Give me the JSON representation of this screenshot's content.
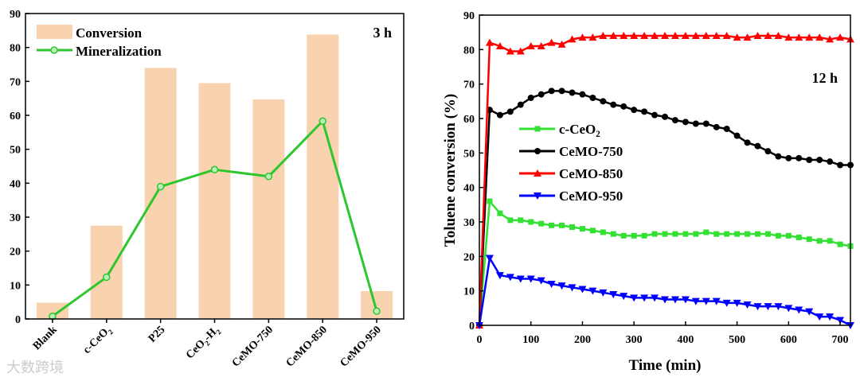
{
  "chart_data": [
    {
      "type": "bar+line",
      "annotation": "3 h",
      "categories": [
        "Blank",
        "c-CeO2",
        "P25",
        "CeO2-H2",
        "CeMO-750",
        "CeMO-850",
        "CeMO-950"
      ],
      "category_labels": [
        {
          "base": "Blank",
          "sub": ""
        },
        {
          "base": "c-CeO",
          "sub": "2"
        },
        {
          "base": "P25",
          "sub": ""
        },
        {
          "base": "CeO",
          "sub": "2",
          "rest": "-H",
          "sub2": "2"
        },
        {
          "base": "CeMO-750",
          "sub": ""
        },
        {
          "base": "CeMO-850",
          "sub": ""
        },
        {
          "base": "CeMO-950",
          "sub": ""
        }
      ],
      "series": [
        {
          "name": "Conversion",
          "kind": "bar",
          "color": "#f9d3b0",
          "values": [
            4.8,
            27.5,
            74,
            69.5,
            64.7,
            83.8,
            8.2
          ]
        },
        {
          "name": "Mineralization",
          "kind": "line",
          "color": "#2ec62e",
          "values": [
            0.8,
            12.3,
            39,
            44,
            42,
            58.3,
            2.3
          ]
        }
      ],
      "ylim": [
        0,
        90
      ],
      "yticks": [
        0,
        10,
        20,
        30,
        40,
        50,
        60,
        70,
        80,
        90
      ],
      "legend": "top-left"
    },
    {
      "type": "line",
      "annotation": "12 h",
      "xlabel": "Time (min)",
      "ylabel": "Toluene conversion (%)",
      "xlim": [
        0,
        720
      ],
      "ylim": [
        0,
        90
      ],
      "xticks": [
        0,
        100,
        200,
        300,
        400,
        500,
        600,
        700
      ],
      "yticks": [
        0,
        10,
        20,
        30,
        40,
        50,
        60,
        70,
        80,
        90
      ],
      "x_step": 20,
      "series": [
        {
          "name": "c-CeO2",
          "label_base": "c-CeO",
          "label_sub": "2",
          "color": "#33e033",
          "marker": "square",
          "values": [
            0,
            36,
            32.5,
            30.5,
            30.5,
            30,
            29.5,
            29,
            29,
            28.5,
            28,
            27.5,
            27,
            26.5,
            26,
            26,
            26,
            26.5,
            26.5,
            26.5,
            26.5,
            26.5,
            27,
            26.5,
            26.5,
            26.5,
            26.5,
            26.5,
            26.5,
            26,
            26,
            25.5,
            25,
            24.5,
            24.5,
            23.5,
            23
          ]
        },
        {
          "name": "CeMO-750",
          "label_base": "CeMO-750",
          "label_sub": "",
          "color": "#000000",
          "marker": "circle",
          "values": [
            0,
            62.5,
            61,
            62,
            64,
            66,
            67,
            68,
            68,
            67.5,
            67,
            66,
            65,
            64,
            63.5,
            62.5,
            62,
            61,
            60.5,
            59.5,
            59,
            58.5,
            58.5,
            57.5,
            57,
            55,
            53,
            52,
            50.5,
            49,
            48.5,
            48.5,
            48,
            48,
            47.5,
            46.5,
            46.5
          ]
        },
        {
          "name": "CeMO-850",
          "label_base": "CeMO-850",
          "label_sub": "",
          "color": "#ff0000",
          "marker": "triangle-up",
          "values": [
            0,
            82,
            81,
            79.5,
            79.5,
            81,
            81,
            82,
            81.5,
            83,
            83.5,
            83.5,
            84,
            84,
            84,
            84,
            84,
            84,
            84,
            84,
            84,
            84,
            84,
            84,
            84,
            83.5,
            83.5,
            84,
            84,
            84,
            83.5,
            83.5,
            83.5,
            83.5,
            83,
            83.5,
            83
          ]
        },
        {
          "name": "CeMO-950",
          "label_base": "CeMO-950",
          "label_sub": "",
          "color": "#0000ff",
          "marker": "triangle-down",
          "values": [
            0,
            19.5,
            14.5,
            14,
            13.5,
            13.5,
            13,
            12,
            11.5,
            11,
            10.5,
            10,
            9.5,
            9,
            8.5,
            8,
            8,
            8,
            7.5,
            7.5,
            7.5,
            7,
            7,
            7,
            6.5,
            6.5,
            6,
            5.5,
            5.5,
            5.5,
            5,
            4.5,
            4,
            2.5,
            2.5,
            1.5,
            0
          ]
        }
      ],
      "legend": "center-left"
    }
  ],
  "watermark": "大数跨境"
}
